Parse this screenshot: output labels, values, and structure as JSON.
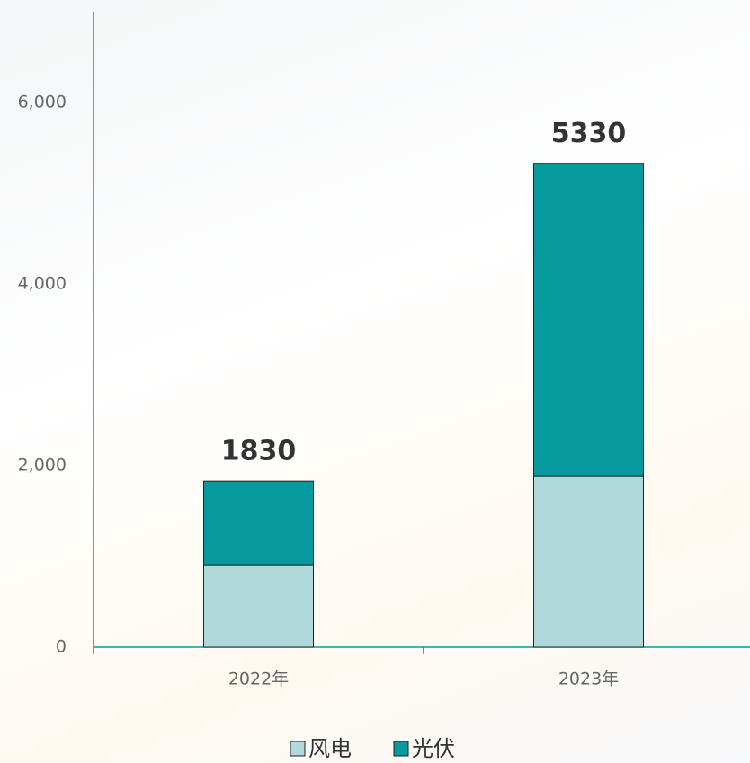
{
  "chart_data": {
    "type": "stacked_bar",
    "categories": [
      "2022年",
      "2023年"
    ],
    "series": [
      {
        "name": "风电",
        "color": "#b0d9dc",
        "values": [
          900,
          1880
        ]
      },
      {
        "name": "光伏",
        "color": "#069a9f",
        "values": [
          930,
          3450
        ]
      }
    ],
    "totals": [
      1830,
      5330
    ],
    "ylim": [
      0,
      7000
    ],
    "yticks": [
      0,
      {
        "value": 2000,
        "label": "2,000"
      },
      {
        "value": 4000,
        "label": "4,000"
      },
      {
        "value": 6000,
        "label": "6,000"
      }
    ],
    "legend": "bottom"
  }
}
